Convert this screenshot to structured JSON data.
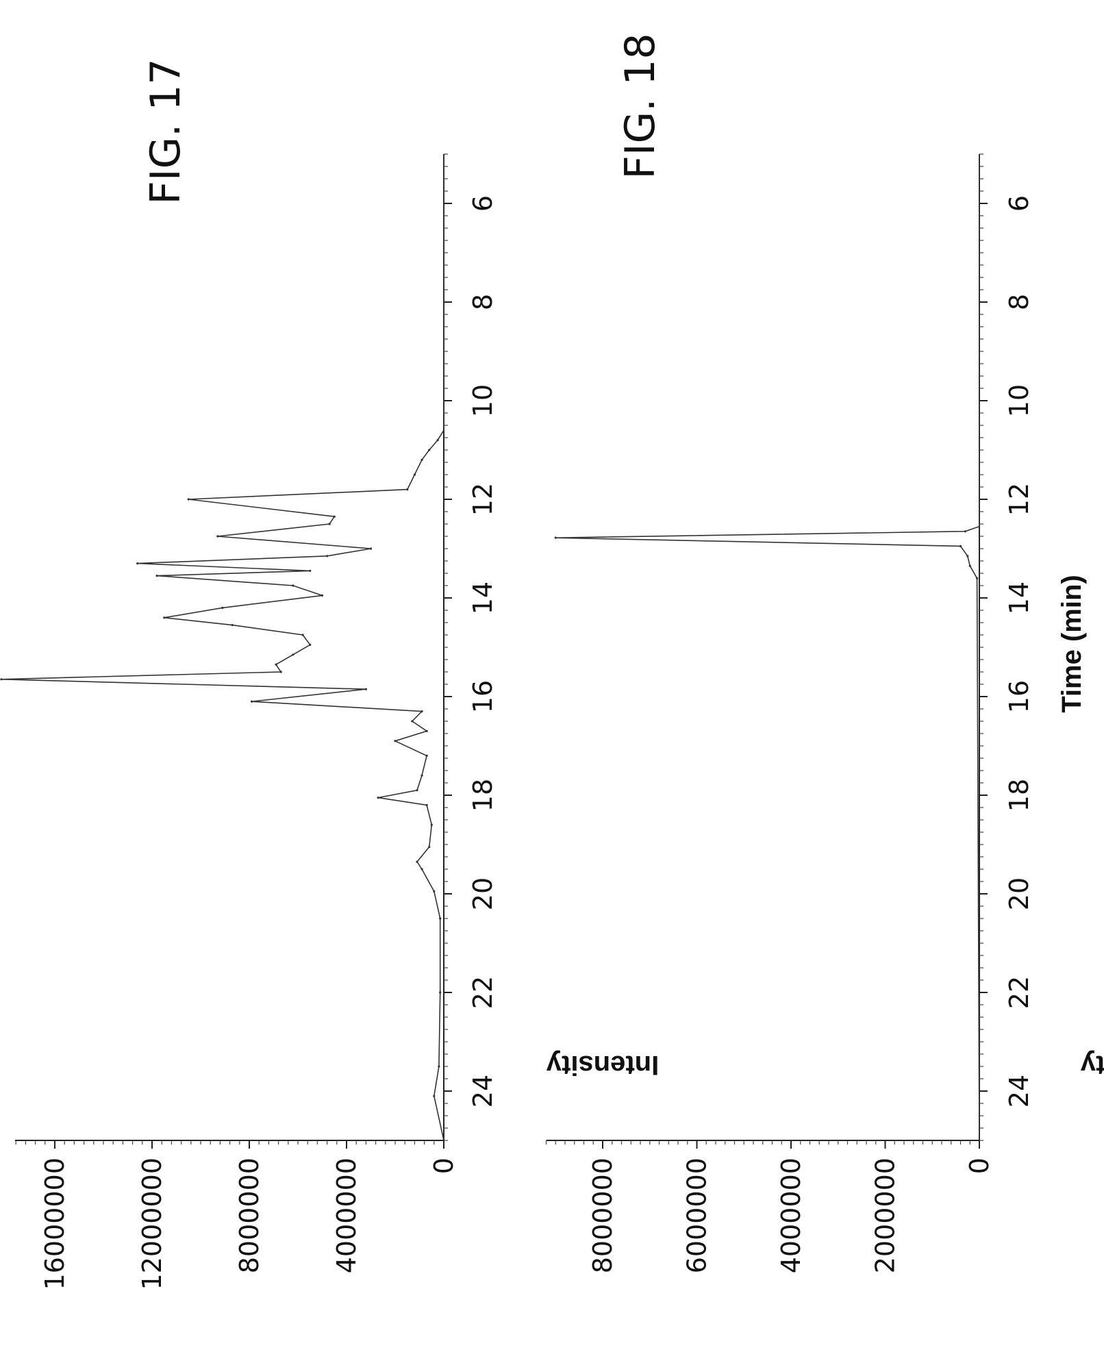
{
  "chart_data": [
    {
      "type": "line",
      "title": "FIG. 17",
      "xlabel": "",
      "ylabel": "Intensity",
      "xlim": [
        5,
        25
      ],
      "ylim": [
        0,
        18000000
      ],
      "x_ticks": [
        "6",
        "8",
        "10",
        "12",
        "14",
        "16",
        "18",
        "20",
        "22",
        "24"
      ],
      "y_ticks": [
        "0",
        "4000000",
        "8000000",
        "12000000",
        "16000000"
      ],
      "grid": false,
      "series": [
        {
          "values": [
            [
              5.0,
              0
            ],
            [
              10.6,
              0
            ],
            [
              10.8,
              250000
            ],
            [
              11.0,
              600000
            ],
            [
              11.2,
              900000
            ],
            [
              11.5,
              1200000
            ],
            [
              11.8,
              1500000
            ],
            [
              12.0,
              10500000
            ],
            [
              12.35,
              4500000
            ],
            [
              12.5,
              4700000
            ],
            [
              12.75,
              9300000
            ],
            [
              13.0,
              3000000
            ],
            [
              13.15,
              4800000
            ],
            [
              13.3,
              12600000
            ],
            [
              13.45,
              5500000
            ],
            [
              13.55,
              11800000
            ],
            [
              13.75,
              6200000
            ],
            [
              13.95,
              5000000
            ],
            [
              14.2,
              9100000
            ],
            [
              14.4,
              11500000
            ],
            [
              14.55,
              8700000
            ],
            [
              14.75,
              5800000
            ],
            [
              14.95,
              5500000
            ],
            [
              15.15,
              6200000
            ],
            [
              15.35,
              6900000
            ],
            [
              15.5,
              6700000
            ],
            [
              15.65,
              18200000
            ],
            [
              15.85,
              3200000
            ],
            [
              16.1,
              7900000
            ],
            [
              16.3,
              900000
            ],
            [
              16.5,
              1300000
            ],
            [
              16.7,
              700000
            ],
            [
              16.9,
              2000000
            ],
            [
              17.2,
              700000
            ],
            [
              17.6,
              900000
            ],
            [
              17.9,
              1100000
            ],
            [
              18.05,
              2700000
            ],
            [
              18.2,
              700000
            ],
            [
              18.6,
              500000
            ],
            [
              19.05,
              600000
            ],
            [
              19.35,
              1100000
            ],
            [
              19.5,
              900000
            ],
            [
              19.95,
              400000
            ],
            [
              20.5,
              150000
            ],
            [
              22.0,
              150000
            ],
            [
              23.5,
              200000
            ],
            [
              24.1,
              400000
            ],
            [
              25.0,
              0
            ]
          ]
        }
      ]
    },
    {
      "type": "line",
      "title": "FIG. 18",
      "xlabel": "Time (min)",
      "ylabel": "Intensity",
      "xlim": [
        5,
        25
      ],
      "ylim": [
        0,
        9200000
      ],
      "x_ticks": [
        "6",
        "8",
        "10",
        "12",
        "14",
        "16",
        "18",
        "20",
        "22",
        "24"
      ],
      "y_ticks": [
        "0",
        "2000000",
        "4000000",
        "6000000",
        "8000000"
      ],
      "grid": false,
      "series": [
        {
          "values": [
            [
              5.0,
              0
            ],
            [
              12.55,
              0
            ],
            [
              12.65,
              300000
            ],
            [
              12.78,
              9000000
            ],
            [
              12.95,
              400000
            ],
            [
              13.15,
              250000
            ],
            [
              13.35,
              200000
            ],
            [
              13.6,
              50000
            ],
            [
              25.0,
              0
            ]
          ]
        }
      ]
    }
  ]
}
